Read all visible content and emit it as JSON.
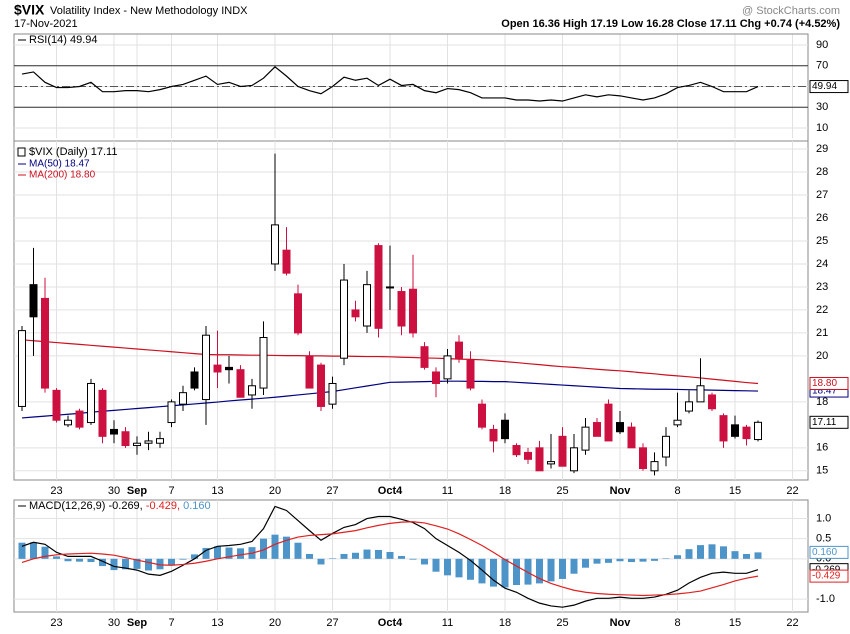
{
  "header": {
    "symbol": "$VIX",
    "name": "Volatility Index - New Methodology  INDX",
    "date": "17-Nov-2021",
    "source": "@ StockCharts.com",
    "quote": "Open 16.36  High 17.19  Low 16.28  Close 17.11  Chg +0.74 (+4.52%)"
  },
  "chart_data": [
    {
      "type": "line",
      "legend": "RSI(14) 49.94",
      "ylim": [
        0,
        100
      ],
      "yticks": [
        10,
        30,
        50,
        70,
        90
      ],
      "bands": [
        30,
        70
      ],
      "midline": 50,
      "grid": true,
      "series": [
        {
          "color": "#000000",
          "tag": "49.94",
          "values": [
            62,
            64,
            54,
            49,
            49,
            50,
            54,
            45,
            45,
            46,
            46,
            45,
            47,
            50,
            52,
            56,
            60,
            52,
            54,
            50,
            51,
            58,
            69,
            60,
            50,
            46,
            43,
            50,
            59,
            56,
            58,
            51,
            57,
            51,
            52,
            46,
            44,
            48,
            47,
            44,
            39,
            39,
            39,
            37,
            37,
            36,
            37,
            36,
            39,
            42,
            40,
            42,
            41,
            39,
            37,
            39,
            43,
            49,
            51,
            54,
            50,
            45,
            45,
            45,
            49.94,
            null,
            null,
            null
          ]
        }
      ]
    },
    {
      "type": "candlestick",
      "name": "$VIX (Daily) 17.11",
      "tag": "17.11",
      "up_color": "#000000",
      "down_color": "#cc1040",
      "ylim": [
        14.6,
        29.35
      ],
      "yticks": [
        15,
        16,
        18,
        20,
        21,
        22,
        23,
        24,
        25,
        26,
        27,
        28,
        29
      ],
      "grid": true,
      "categories": [
        null,
        null,
        null,
        "23",
        null,
        null,
        null,
        null,
        "30",
        null,
        "Sep",
        null,
        null,
        "7",
        null,
        null,
        null,
        "13",
        null,
        null,
        null,
        null,
        "20",
        null,
        null,
        null,
        null,
        "27",
        null,
        null,
        null,
        null,
        "Oct4",
        null,
        null,
        null,
        null,
        "11",
        null,
        null,
        null,
        null,
        "18",
        null,
        null,
        null,
        null,
        "25",
        null,
        null,
        null,
        null,
        "Nov",
        null,
        null,
        null,
        null,
        "8",
        null,
        null,
        null,
        null,
        "15",
        null,
        null,
        null,
        null,
        "22"
      ],
      "open": [
        17.8,
        23.1,
        22.5,
        18.5,
        17.0,
        17.6,
        17.1,
        18.5,
        16.8,
        16.7,
        16.1,
        16.2,
        16.2,
        17.1,
        17.9,
        19.3,
        18.1,
        19.6,
        19.5,
        19.4,
        18.3,
        18.6,
        24.0,
        24.6,
        22.7,
        20.0,
        19.6,
        17.9,
        19.9,
        22.0,
        21.3,
        24.8,
        23.0,
        22.8,
        22.9,
        20.4,
        19.3,
        19.0,
        20.6,
        19.8,
        17.9,
        16.8,
        17.2,
        16.1,
        15.8,
        16.0,
        15.3,
        16.5,
        15.0,
        15.9,
        17.1,
        17.9,
        17.1,
        16.9,
        16.0,
        15.0,
        15.6,
        17.0,
        17.6,
        18.0,
        18.3,
        17.4,
        17.0,
        16.9,
        16.36,
        null,
        null,
        null
      ],
      "high": [
        21.3,
        24.7,
        23.4,
        18.6,
        17.4,
        17.7,
        19.0,
        18.6,
        17.2,
        16.9,
        16.5,
        16.7,
        16.7,
        18.1,
        18.7,
        19.5,
        21.3,
        21.1,
        20.0,
        19.6,
        19.0,
        21.5,
        28.8,
        25.6,
        23.1,
        20.2,
        19.7,
        19.1,
        24.0,
        22.4,
        23.7,
        24.9,
        24.8,
        23.0,
        24.4,
        20.6,
        19.5,
        20.3,
        20.9,
        20.2,
        18.1,
        17.0,
        17.5,
        16.2,
        16.0,
        16.3,
        16.6,
        16.9,
        16.6,
        17.3,
        17.3,
        18.1,
        17.6,
        17.1,
        16.2,
        15.8,
        16.9,
        18.4,
        18.5,
        19.9,
        18.4,
        17.5,
        17.4,
        17.0,
        17.19,
        null,
        null,
        null
      ],
      "low": [
        17.6,
        20.0,
        18.4,
        17.1,
        16.9,
        16.8,
        17.0,
        16.2,
        16.2,
        16.0,
        15.7,
        15.9,
        16.0,
        16.9,
        17.6,
        18.5,
        17.0,
        18.6,
        18.8,
        18.2,
        17.7,
        18.3,
        23.7,
        23.5,
        20.9,
        18.6,
        17.6,
        17.7,
        19.6,
        21.5,
        21.0,
        20.8,
        22.0,
        20.9,
        20.8,
        19.4,
        18.2,
        18.8,
        19.7,
        18.5,
        16.8,
        15.8,
        16.2,
        15.6,
        15.3,
        15.0,
        15.1,
        15.2,
        14.9,
        15.7,
        16.5,
        16.3,
        16.6,
        16.0,
        15.0,
        14.8,
        15.2,
        16.9,
        17.5,
        18.0,
        17.6,
        16.0,
        16.4,
        16.1,
        16.28,
        null,
        null,
        null
      ],
      "close": [
        21.1,
        21.7,
        18.6,
        17.2,
        17.2,
        16.9,
        18.8,
        16.5,
        16.6,
        16.1,
        16.2,
        16.3,
        16.4,
        18.0,
        18.4,
        18.6,
        20.9,
        19.3,
        19.4,
        18.2,
        18.7,
        20.8,
        25.7,
        23.6,
        21.0,
        18.6,
        17.8,
        18.8,
        23.3,
        21.7,
        23.1,
        21.2,
        22.96,
        21.3,
        21.0,
        19.5,
        18.8,
        20.0,
        19.9,
        18.6,
        16.9,
        16.3,
        16.4,
        15.7,
        15.5,
        15.0,
        15.4,
        15.2,
        16.0,
        16.9,
        16.5,
        16.3,
        16.7,
        16.0,
        15.1,
        15.4,
        16.5,
        17.2,
        18.0,
        18.7,
        17.7,
        16.3,
        16.5,
        16.4,
        17.11,
        null,
        null,
        null
      ],
      "series": [
        {
          "name": "MA(50) 18.47",
          "color": "#000080",
          "tag": "18.47",
          "values": [
            17.3,
            17.34,
            17.38,
            17.42,
            17.46,
            17.5,
            17.55,
            17.59,
            17.63,
            17.67,
            17.71,
            17.75,
            17.79,
            17.83,
            17.87,
            17.91,
            17.95,
            17.99,
            18.04,
            18.08,
            18.12,
            18.16,
            18.2,
            18.25,
            18.3,
            18.35,
            18.4,
            18.45,
            18.53,
            18.61,
            18.69,
            18.77,
            18.85,
            18.86,
            18.87,
            18.88,
            18.89,
            18.9,
            18.9,
            18.89,
            18.89,
            18.88,
            18.88,
            18.85,
            18.82,
            18.79,
            18.76,
            18.73,
            18.7,
            18.67,
            18.64,
            18.61,
            18.58,
            18.57,
            18.56,
            18.55,
            18.55,
            18.54,
            18.53,
            18.52,
            18.51,
            18.5,
            18.49,
            18.48,
            18.47,
            null,
            null,
            null
          ]
        },
        {
          "name": "MA(200) 18.80",
          "color": "#cc1020",
          "tag": "18.80",
          "values": [
            20.7,
            20.66,
            20.62,
            20.58,
            20.54,
            20.5,
            20.46,
            20.42,
            20.38,
            20.34,
            20.3,
            20.26,
            20.22,
            20.18,
            20.14,
            20.1,
            20.06,
            20.05,
            20.05,
            20.04,
            20.03,
            20.03,
            20.02,
            20.01,
            20.01,
            20.0,
            20.0,
            19.99,
            19.99,
            19.98,
            19.97,
            19.97,
            19.96,
            19.94,
            19.93,
            19.91,
            19.9,
            19.88,
            19.86,
            19.85,
            19.83,
            19.79,
            19.75,
            19.71,
            19.66,
            19.62,
            19.57,
            19.53,
            19.5,
            19.46,
            19.42,
            19.38,
            19.35,
            19.31,
            19.26,
            19.22,
            19.17,
            19.13,
            19.09,
            19.04,
            18.99,
            18.94,
            18.89,
            18.84,
            18.8,
            null,
            null,
            null
          ]
        }
      ]
    },
    {
      "type": "line",
      "legend": "MACD(12,26,9)",
      "ylim": [
        -1.32,
        1.46
      ],
      "yticks": [
        {
          "value": 1,
          "label": "1.0"
        },
        {
          "value": 0.5,
          "label": "0.5"
        },
        {
          "value": 0,
          "label": "0.0"
        },
        {
          "value": -1,
          "label": "-1.0"
        }
      ],
      "grid": true,
      "series": [
        {
          "type": "bar",
          "name": "0.160",
          "color": "#4d94c8",
          "tag": "0.160",
          "values": [
            0.4,
            0.41,
            0.3,
            0.06,
            -0.06,
            -0.07,
            -0.08,
            -0.18,
            -0.28,
            -0.26,
            -0.25,
            -0.29,
            -0.26,
            -0.15,
            -0.02,
            0.11,
            0.27,
            0.31,
            0.28,
            0.26,
            0.29,
            0.5,
            0.6,
            0.55,
            0.4,
            0.12,
            -0.14,
            0.01,
            0.12,
            0.15,
            0.23,
            0.22,
            0.17,
            0.07,
            -0.02,
            -0.14,
            -0.32,
            -0.41,
            -0.46,
            -0.52,
            -0.61,
            -0.69,
            -0.71,
            -0.65,
            -0.64,
            -0.61,
            -0.56,
            -0.5,
            -0.37,
            -0.22,
            -0.12,
            -0.1,
            -0.06,
            -0.08,
            -0.07,
            -0.05,
            0.01,
            0.09,
            0.24,
            0.34,
            0.36,
            0.31,
            0.19,
            0.12,
            0.16,
            null,
            null,
            null
          ]
        },
        {
          "name": "-0.269,",
          "color": "#000000",
          "tag": "-0.269",
          "values": [
            0.31,
            0.41,
            0.36,
            0.16,
            0.06,
            0.06,
            0.06,
            -0.06,
            -0.19,
            -0.23,
            -0.28,
            -0.38,
            -0.41,
            -0.31,
            -0.16,
            0.0,
            0.21,
            0.31,
            0.33,
            0.36,
            0.43,
            0.75,
            1.3,
            1.2,
            0.95,
            0.7,
            0.46,
            0.63,
            0.78,
            0.85,
            1.0,
            1.05,
            1.05,
            0.98,
            0.9,
            0.75,
            0.5,
            0.33,
            0.16,
            -0.04,
            -0.28,
            -0.53,
            -0.73,
            -0.83,
            -0.98,
            -1.1,
            -1.17,
            -1.2,
            -1.15,
            -1.05,
            -0.98,
            -0.98,
            -0.95,
            -0.98,
            -0.98,
            -0.95,
            -0.88,
            -0.78,
            -0.6,
            -0.46,
            -0.36,
            -0.33,
            -0.36,
            -0.36,
            -0.269,
            null,
            null,
            null
          ]
        },
        {
          "name": "-0.429,",
          "color": "#e02020",
          "tag": "-0.429",
          "values": [
            -0.09,
            0.0,
            0.06,
            0.1,
            0.12,
            0.13,
            0.14,
            0.12,
            0.09,
            0.03,
            -0.03,
            -0.09,
            -0.15,
            -0.16,
            -0.14,
            -0.11,
            -0.06,
            0.0,
            0.05,
            0.1,
            0.14,
            0.22,
            0.36,
            0.46,
            0.54,
            0.58,
            0.6,
            0.62,
            0.66,
            0.7,
            0.77,
            0.83,
            0.88,
            0.91,
            0.92,
            0.89,
            0.82,
            0.74,
            0.62,
            0.48,
            0.33,
            0.16,
            -0.02,
            -0.18,
            -0.34,
            -0.49,
            -0.61,
            -0.7,
            -0.78,
            -0.83,
            -0.86,
            -0.88,
            -0.89,
            -0.9,
            -0.91,
            -0.9,
            -0.89,
            -0.87,
            -0.84,
            -0.8,
            -0.72,
            -0.64,
            -0.55,
            -0.48,
            -0.429,
            null,
            null,
            null
          ]
        }
      ]
    }
  ]
}
